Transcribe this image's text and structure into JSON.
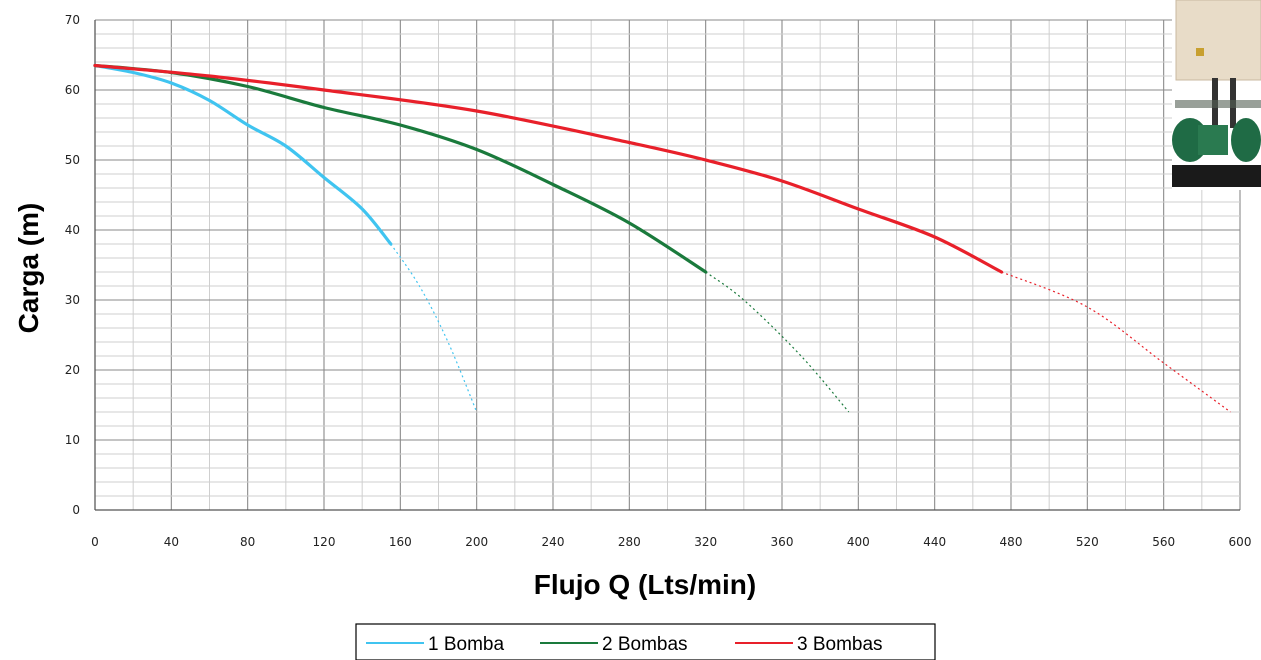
{
  "chart_data": {
    "type": "line",
    "xlabel": "Flujo Q (Lts/min)",
    "ylabel": "Carga  (m)",
    "xlim": [
      0,
      600
    ],
    "ylim": [
      0,
      70
    ],
    "x_ticks": [
      "0",
      "40",
      "80",
      "120",
      "160",
      "200",
      "240",
      "280",
      "320",
      "360",
      "400",
      "440",
      "480",
      "520",
      "560",
      "600"
    ],
    "y_ticks": [
      "0",
      "10",
      "20",
      "30",
      "40",
      "50",
      "60",
      "70"
    ],
    "grid": true,
    "legend_position": "bottom",
    "colors": {
      "1 Bomba": "#40c4f0",
      "2 Bombas": "#1a7a3c",
      "3 Bombas": "#e8202a",
      "grid": "#a8a8a8"
    },
    "series": [
      {
        "name": "1 Bomba",
        "solid": [
          [
            0,
            63.5
          ],
          [
            20,
            62.5
          ],
          [
            40,
            61
          ],
          [
            60,
            58.5
          ],
          [
            80,
            55
          ],
          [
            100,
            52
          ],
          [
            120,
            47.5
          ],
          [
            140,
            43
          ],
          [
            155,
            38
          ]
        ],
        "dashed": [
          [
            155,
            38
          ],
          [
            170,
            32
          ],
          [
            185,
            24
          ],
          [
            200,
            14
          ]
        ]
      },
      {
        "name": "2 Bombas",
        "solid": [
          [
            0,
            63.5
          ],
          [
            40,
            62.5
          ],
          [
            80,
            60.5
          ],
          [
            120,
            57.5
          ],
          [
            160,
            55
          ],
          [
            200,
            51.5
          ],
          [
            240,
            46.5
          ],
          [
            280,
            41
          ],
          [
            320,
            34
          ]
        ],
        "dashed": [
          [
            320,
            34
          ],
          [
            340,
            30
          ],
          [
            370,
            22
          ],
          [
            395,
            14
          ]
        ]
      },
      {
        "name": "3 Bombas",
        "solid": [
          [
            0,
            63.5
          ],
          [
            60,
            62
          ],
          [
            120,
            60
          ],
          [
            200,
            57
          ],
          [
            280,
            52.5
          ],
          [
            320,
            50
          ],
          [
            360,
            47
          ],
          [
            400,
            43
          ],
          [
            440,
            39
          ],
          [
            475,
            34
          ]
        ],
        "dashed": [
          [
            475,
            34
          ],
          [
            520,
            29
          ],
          [
            560,
            21
          ],
          [
            595,
            14
          ]
        ]
      }
    ],
    "legend": [
      "1 Bomba",
      "2 Bombas",
      "3 Bombas"
    ]
  },
  "photo": {
    "name": "pump-equipment-photo",
    "colors": {
      "cabinet": "#e8dcc8",
      "motor": "#1f6b45",
      "base": "#1a1a1a"
    }
  }
}
